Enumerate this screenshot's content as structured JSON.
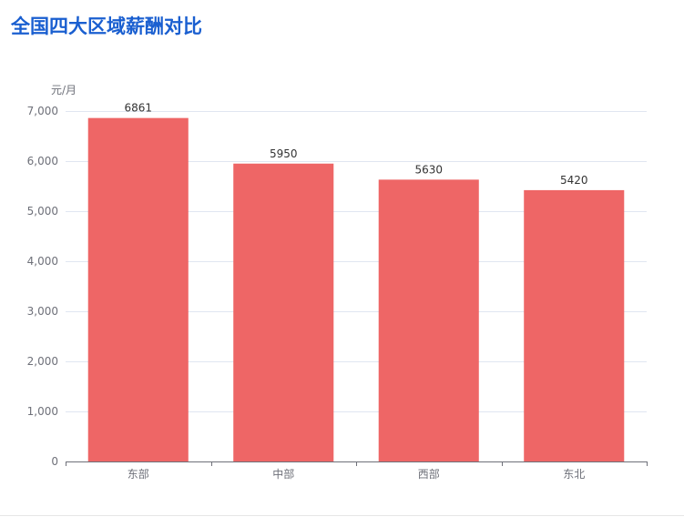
{
  "title": "全国四大区域薪酬对比",
  "chart_data": {
    "type": "bar",
    "ylabel": "元/月",
    "categories": [
      "东部",
      "中部",
      "西部",
      "东北"
    ],
    "values": [
      6861,
      5950,
      5630,
      5420
    ],
    "value_labels": [
      "6861",
      "5950",
      "5630",
      "5420"
    ],
    "ylim": [
      0,
      7000
    ],
    "yticks": [
      0,
      1000,
      2000,
      3000,
      4000,
      5000,
      6000,
      7000
    ],
    "ytick_labels": [
      "0",
      "1,000",
      "2,000",
      "3,000",
      "4,000",
      "5,000",
      "6,000",
      "7,000"
    ],
    "grid": true,
    "colors": {
      "bar": "#ee6666",
      "grid": "#e0e6f1",
      "axis": "#6e7079",
      "tick_text": "#6e7079",
      "value_text": "#333333"
    }
  }
}
